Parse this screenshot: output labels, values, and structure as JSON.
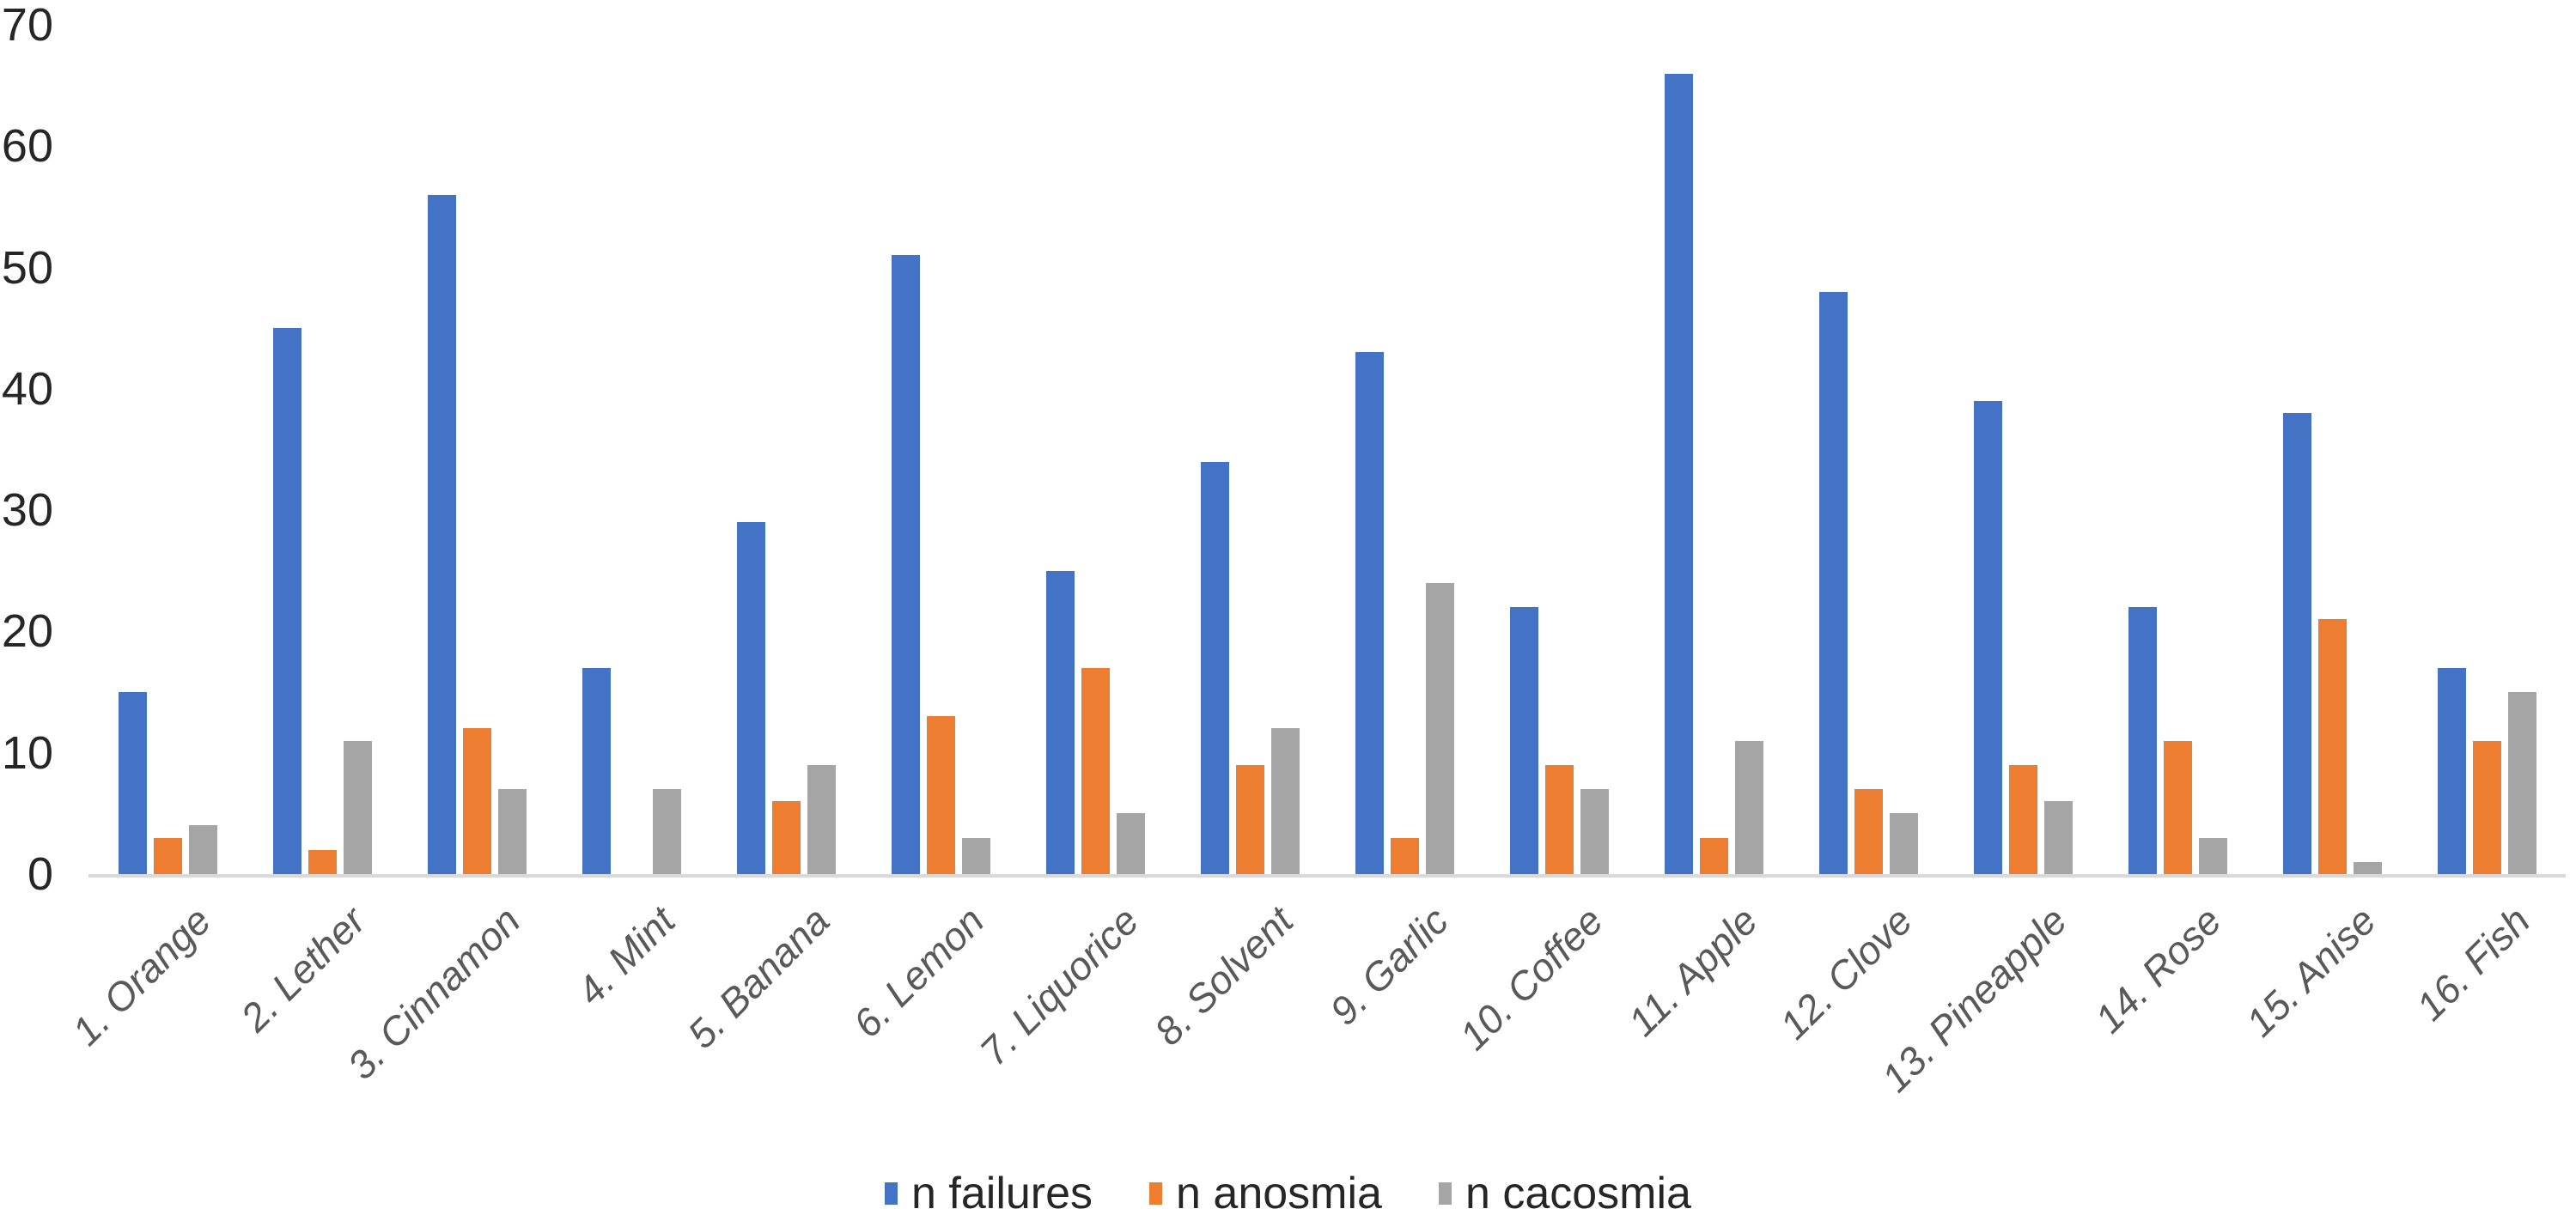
{
  "chart_data": {
    "type": "bar",
    "title": "",
    "categories": [
      "1. Orange",
      "2. Lether",
      "3. Cinnamon",
      "4. Mint",
      "5. Banana",
      "6. Lemon",
      "7. Liquorice",
      "8. Solvent",
      "9. Garlic",
      "10. Coffee",
      "11. Apple",
      "12. Clove",
      "13. Pineapple",
      "14. Rose",
      "15. Anise",
      "16. Fish"
    ],
    "series": [
      {
        "name": "n failures",
        "color": "#4472C4",
        "values": [
          15,
          45,
          56,
          17,
          29,
          51,
          25,
          34,
          43,
          22,
          66,
          48,
          39,
          22,
          38,
          17
        ]
      },
      {
        "name": "n anosmia",
        "color": "#ED7D31",
        "values": [
          3,
          2,
          12,
          0,
          6,
          13,
          17,
          9,
          3,
          9,
          3,
          7,
          9,
          11,
          21,
          11
        ]
      },
      {
        "name": "n cacosmia",
        "color": "#A5A5A5",
        "values": [
          4,
          11,
          7,
          7,
          9,
          3,
          5,
          12,
          24,
          7,
          11,
          5,
          6,
          3,
          1,
          15
        ]
      }
    ],
    "y_axis": {
      "min": 0,
      "max": 70,
      "step": 10,
      "tick_labels": [
        "0",
        "10",
        "20",
        "30",
        "40",
        "50",
        "60",
        "70"
      ]
    },
    "grid": false,
    "legend_position": "bottom",
    "legend": [
      "n failures",
      "n anosmia",
      "n cacosmia"
    ]
  },
  "colors": {
    "background": "#FFFFFF",
    "axis_line": "#D9D9D9",
    "tick_text": "#262626",
    "category_text": "#595959",
    "legend_text": "#262626"
  }
}
